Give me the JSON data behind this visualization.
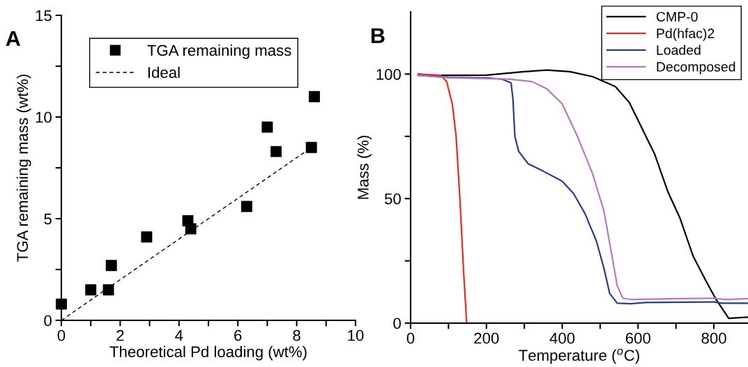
{
  "chart_data": [
    {
      "type": "scatter",
      "xlabel": "Theoretical Pd loading (wt%)",
      "ylabel": "TGA remaining mass (wt%)",
      "annotations": [
        "A"
      ],
      "xlim": [
        0,
        10
      ],
      "ylim": [
        0,
        15
      ],
      "xticks": [
        0,
        {
          "value": 1,
          "label": null
        },
        2,
        {
          "value": 3,
          "label": null
        },
        4,
        {
          "value": 5,
          "label": null
        },
        6,
        {
          "value": 7,
          "label": null
        },
        8,
        {
          "value": 9,
          "label": null
        },
        10
      ],
      "yticks": [
        0,
        {
          "value": 2.5,
          "label": null
        },
        5,
        {
          "value": 7.5,
          "label": null
        },
        10,
        {
          "value": 12.5,
          "label": null
        },
        15
      ],
      "legend": "top",
      "grid": false,
      "series": [
        {
          "name": "TGA remaining mass",
          "color": "#000000",
          "type": "scatter",
          "marker": "square",
          "x": [
            0,
            1,
            1.6,
            1.7,
            2.9,
            4.3,
            4.4,
            6.3,
            7,
            7.3,
            8.5,
            8.6
          ],
          "values": [
            0.8,
            1.5,
            1.5,
            2.7,
            4.1,
            4.9,
            4.5,
            5.6,
            9.5,
            8.3,
            8.5,
            11
          ]
        },
        {
          "name": "Ideal",
          "color": "#000000",
          "type": "line",
          "line_style": "dashed",
          "x": [
            0,
            8.5
          ],
          "values": [
            0,
            8.5
          ]
        }
      ]
    },
    {
      "type": "line",
      "xlabel": "Temperature ($^{o}$C)",
      "ylabel": "Mass (%)",
      "annotations": [
        "B"
      ],
      "xlim": [
        0,
        890
      ],
      "ylim": [
        0,
        125
      ],
      "xticks": [
        0,
        {
          "value": 100,
          "label": null
        },
        200,
        {
          "value": 300,
          "label": null
        },
        400,
        {
          "value": 500,
          "label": null
        },
        600,
        {
          "value": 700,
          "label": null
        },
        800
      ],
      "yticks": [
        0,
        {
          "value": 25,
          "label": null
        },
        50,
        {
          "value": 75,
          "label": null
        },
        100
      ],
      "legend": "top right",
      "grid": false,
      "line_style": "solid",
      "series": [
        {
          "name": "CMP-0",
          "color": "#000000",
          "x": [
            20,
            50,
            100,
            200,
            300,
            360,
            420,
            480,
            540,
            577,
            644,
            678,
            711,
            745,
            779,
            805,
            830,
            839,
            890
          ],
          "values": [
            100,
            99.5,
            99.5,
            99.6,
            101,
            101.6,
            101,
            99,
            95,
            88.6,
            67.8,
            53,
            42,
            27,
            17,
            9.7,
            4,
            1.9,
            2.4
          ]
        },
        {
          "name": "Pd(hfac)2",
          "color": "#ee2a1c",
          "x": [
            20,
            80,
            95,
            110,
            120,
            130,
            140,
            148,
            510
          ],
          "values": [
            100,
            99.5,
            97,
            88,
            75,
            50,
            20,
            0,
            0
          ]
        },
        {
          "name": "Loaded",
          "color": "#283c8c",
          "x": [
            20,
            100,
            200,
            240,
            265,
            270,
            275,
            285,
            310,
            350,
            400,
            430,
            460,
            490,
            510,
            525,
            545,
            580,
            620,
            800,
            820,
            890
          ],
          "values": [
            99.5,
            98.7,
            98.5,
            98,
            96.5,
            90,
            75,
            69,
            64,
            61,
            57,
            52,
            44,
            33,
            22,
            12,
            8,
            7.8,
            8.3,
            8.5,
            8,
            8
          ]
        },
        {
          "name": "Decomposed",
          "color": "#b57bc0",
          "x": [
            20,
            100,
            260,
            320,
            360,
            400,
            440,
            480,
            510,
            530,
            545,
            560,
            580,
            700,
            800,
            830,
            890
          ],
          "values": [
            99.5,
            98.5,
            98,
            97,
            94,
            88,
            75,
            60,
            45,
            28,
            15,
            10,
            9.5,
            9.8,
            10,
            9.5,
            9.8
          ]
        }
      ]
    }
  ]
}
